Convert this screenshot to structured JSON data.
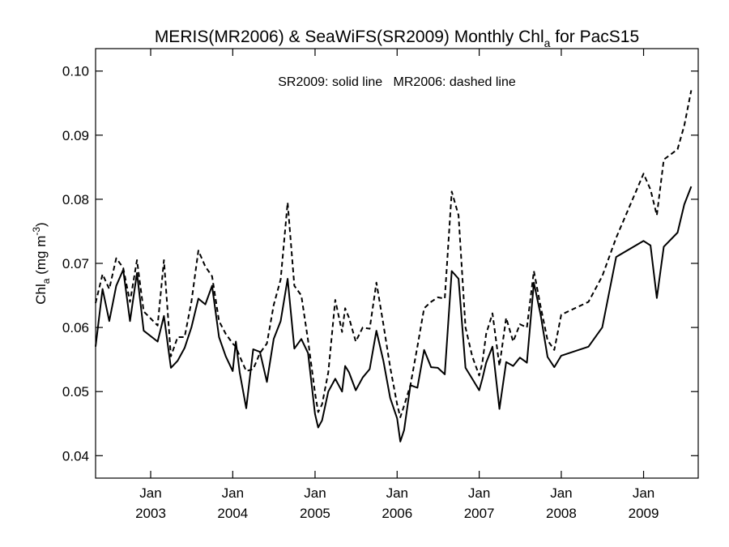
{
  "chart_data": {
    "type": "line",
    "title": {
      "main": "MERIS(MR2006) & SeaWiFS(SR2009) Monthly Chl",
      "sub": "a",
      "rest": " for PacS15"
    },
    "ylabel": {
      "main": "Chl",
      "sub": "a",
      "unit_pre": " (mg m",
      "sup": "-3",
      "unit_post": ")"
    },
    "annotation": "SR2009: solid line   MR2006: dashed line",
    "ylim": [
      0.0365,
      0.1035
    ],
    "yticks": [
      0.04,
      0.05,
      0.06,
      0.07,
      0.08,
      0.09,
      0.1
    ],
    "ytick_labels": [
      "0.04",
      "0.05",
      "0.06",
      "0.07",
      "0.08",
      "0.09",
      "0.10"
    ],
    "xlim": [
      "2002-05-01",
      "2009-09-01"
    ],
    "xticks": [
      {
        "date": "2003-01-01",
        "month": "Jan",
        "year": "2003"
      },
      {
        "date": "2004-01-01",
        "month": "Jan",
        "year": "2004"
      },
      {
        "date": "2005-01-01",
        "month": "Jan",
        "year": "2005"
      },
      {
        "date": "2006-01-01",
        "month": "Jan",
        "year": "2006"
      },
      {
        "date": "2007-01-01",
        "month": "Jan",
        "year": "2007"
      },
      {
        "date": "2008-01-01",
        "month": "Jan",
        "year": "2008"
      },
      {
        "date": "2009-01-01",
        "month": "Jan",
        "year": "2009"
      }
    ],
    "grid": false,
    "series": [
      {
        "name": "SR2009",
        "style": "solid",
        "color": "#000000",
        "points": [
          [
            "2002-05-01",
            0.057
          ],
          [
            "2002-06-01",
            0.066
          ],
          [
            "2002-07-01",
            0.061
          ],
          [
            "2002-08-01",
            0.0665
          ],
          [
            "2002-09-01",
            0.069
          ],
          [
            "2002-10-01",
            0.061
          ],
          [
            "2002-11-01",
            0.0685
          ],
          [
            "2002-12-01",
            0.0595
          ],
          [
            "2003-02-01",
            0.0578
          ],
          [
            "2003-03-01",
            0.0618
          ],
          [
            "2003-04-01",
            0.0537
          ],
          [
            "2003-05-01",
            0.0548
          ],
          [
            "2003-06-01",
            0.0568
          ],
          [
            "2003-07-01",
            0.06
          ],
          [
            "2003-08-01",
            0.0645
          ],
          [
            "2003-09-01",
            0.0636
          ],
          [
            "2003-10-01",
            0.0665
          ],
          [
            "2003-11-01",
            0.0585
          ],
          [
            "2003-12-01",
            0.0555
          ],
          [
            "2004-01-01",
            0.0532
          ],
          [
            "2004-01-15",
            0.0578
          ],
          [
            "2004-02-01",
            0.053
          ],
          [
            "2004-03-01",
            0.0474
          ],
          [
            "2004-04-01",
            0.0566
          ],
          [
            "2004-05-01",
            0.0562
          ],
          [
            "2004-06-01",
            0.0515
          ],
          [
            "2004-07-01",
            0.0582
          ],
          [
            "2004-08-01",
            0.061
          ],
          [
            "2004-09-01",
            0.0676
          ],
          [
            "2004-10-01",
            0.0567
          ],
          [
            "2004-11-01",
            0.0582
          ],
          [
            "2004-12-01",
            0.056
          ],
          [
            "2005-01-01",
            0.0465
          ],
          [
            "2005-01-15",
            0.0444
          ],
          [
            "2005-02-01",
            0.0455
          ],
          [
            "2005-03-01",
            0.05
          ],
          [
            "2005-04-01",
            0.052
          ],
          [
            "2005-05-01",
            0.05
          ],
          [
            "2005-05-15",
            0.054
          ],
          [
            "2005-06-01",
            0.053
          ],
          [
            "2005-07-01",
            0.0502
          ],
          [
            "2005-08-01",
            0.0522
          ],
          [
            "2005-09-01",
            0.0535
          ],
          [
            "2005-10-01",
            0.0595
          ],
          [
            "2005-11-01",
            0.0548
          ],
          [
            "2005-12-01",
            0.049
          ],
          [
            "2006-01-01",
            0.0458
          ],
          [
            "2006-01-15",
            0.0422
          ],
          [
            "2006-02-01",
            0.044
          ],
          [
            "2006-03-01",
            0.051
          ],
          [
            "2006-04-01",
            0.0506
          ],
          [
            "2006-05-01",
            0.0565
          ],
          [
            "2006-06-01",
            0.0538
          ],
          [
            "2006-07-01",
            0.0537
          ],
          [
            "2006-08-01",
            0.0527
          ],
          [
            "2006-09-01",
            0.0688
          ],
          [
            "2006-10-01",
            0.0676
          ],
          [
            "2006-11-01",
            0.0537
          ],
          [
            "2006-12-01",
            0.052
          ],
          [
            "2007-01-01",
            0.0502
          ],
          [
            "2007-01-15",
            0.052
          ],
          [
            "2007-02-01",
            0.0545
          ],
          [
            "2007-03-01",
            0.057
          ],
          [
            "2007-04-01",
            0.0473
          ],
          [
            "2007-05-01",
            0.0546
          ],
          [
            "2007-06-01",
            0.054
          ],
          [
            "2007-07-01",
            0.0553
          ],
          [
            "2007-08-01",
            0.0545
          ],
          [
            "2007-09-01",
            0.067
          ],
          [
            "2007-10-01",
            0.062
          ],
          [
            "2007-11-01",
            0.0554
          ],
          [
            "2007-12-01",
            0.0538
          ],
          [
            "2008-01-01",
            0.0556
          ],
          [
            "2008-05-01",
            0.057
          ],
          [
            "2008-07-01",
            0.06
          ],
          [
            "2008-09-01",
            0.071
          ],
          [
            "2009-01-01",
            0.0735
          ],
          [
            "2009-02-01",
            0.0728
          ],
          [
            "2009-03-01",
            0.0646
          ],
          [
            "2009-04-01",
            0.0726
          ],
          [
            "2009-06-01",
            0.0748
          ],
          [
            "2009-07-01",
            0.0792
          ],
          [
            "2009-08-01",
            0.082
          ]
        ]
      },
      {
        "name": "MR2006",
        "style": "dashed",
        "color": "#000000",
        "points": [
          [
            "2002-05-01",
            0.0638
          ],
          [
            "2002-06-01",
            0.0683
          ],
          [
            "2002-07-01",
            0.066
          ],
          [
            "2002-08-01",
            0.0708
          ],
          [
            "2002-09-01",
            0.0693
          ],
          [
            "2002-10-01",
            0.064
          ],
          [
            "2002-11-01",
            0.0705
          ],
          [
            "2002-12-01",
            0.0625
          ],
          [
            "2003-02-01",
            0.0603
          ],
          [
            "2003-03-01",
            0.0705
          ],
          [
            "2003-04-01",
            0.0555
          ],
          [
            "2003-05-01",
            0.0585
          ],
          [
            "2003-06-01",
            0.0585
          ],
          [
            "2003-07-01",
            0.064
          ],
          [
            "2003-08-01",
            0.072
          ],
          [
            "2003-09-01",
            0.0695
          ],
          [
            "2003-10-01",
            0.068
          ],
          [
            "2003-11-01",
            0.061
          ],
          [
            "2003-12-01",
            0.059
          ],
          [
            "2004-01-01",
            0.0575
          ],
          [
            "2004-01-15",
            0.057
          ],
          [
            "2004-02-01",
            0.0555
          ],
          [
            "2004-03-01",
            0.0532
          ],
          [
            "2004-04-01",
            0.0535
          ],
          [
            "2004-05-01",
            0.056
          ],
          [
            "2004-06-01",
            0.0575
          ],
          [
            "2004-07-01",
            0.0635
          ],
          [
            "2004-08-01",
            0.0675
          ],
          [
            "2004-09-01",
            0.0795
          ],
          [
            "2004-10-01",
            0.0665
          ],
          [
            "2004-11-01",
            0.065
          ],
          [
            "2004-12-01",
            0.058
          ],
          [
            "2005-01-01",
            0.0498
          ],
          [
            "2005-01-15",
            0.0468
          ],
          [
            "2005-02-01",
            0.048
          ],
          [
            "2005-03-01",
            0.053
          ],
          [
            "2005-04-01",
            0.0643
          ],
          [
            "2005-05-01",
            0.0593
          ],
          [
            "2005-05-15",
            0.063
          ],
          [
            "2005-06-01",
            0.0615
          ],
          [
            "2005-07-01",
            0.0578
          ],
          [
            "2005-08-01",
            0.06
          ],
          [
            "2005-09-01",
            0.0598
          ],
          [
            "2005-10-01",
            0.067
          ],
          [
            "2005-11-01",
            0.0605
          ],
          [
            "2005-12-01",
            0.0538
          ],
          [
            "2006-01-01",
            0.048
          ],
          [
            "2006-01-15",
            0.046
          ],
          [
            "2006-02-01",
            0.0478
          ],
          [
            "2006-03-01",
            0.051
          ],
          [
            "2006-04-01",
            0.057
          ],
          [
            "2006-05-01",
            0.063
          ],
          [
            "2006-06-01",
            0.064
          ],
          [
            "2006-07-01",
            0.0647
          ],
          [
            "2006-08-01",
            0.0645
          ],
          [
            "2006-09-01",
            0.0812
          ],
          [
            "2006-10-01",
            0.0775
          ],
          [
            "2006-11-01",
            0.06
          ],
          [
            "2006-12-01",
            0.0555
          ],
          [
            "2007-01-01",
            0.0525
          ],
          [
            "2007-01-15",
            0.0545
          ],
          [
            "2007-02-01",
            0.059
          ],
          [
            "2007-03-01",
            0.0622
          ],
          [
            "2007-04-01",
            0.054
          ],
          [
            "2007-05-01",
            0.0615
          ],
          [
            "2007-06-01",
            0.0578
          ],
          [
            "2007-07-01",
            0.0605
          ],
          [
            "2007-08-01",
            0.06
          ],
          [
            "2007-09-01",
            0.0688
          ],
          [
            "2007-10-01",
            0.0633
          ],
          [
            "2007-11-01",
            0.058
          ],
          [
            "2007-12-01",
            0.0565
          ],
          [
            "2008-01-01",
            0.062
          ],
          [
            "2008-05-01",
            0.064
          ],
          [
            "2008-07-01",
            0.068
          ],
          [
            "2008-09-01",
            0.074
          ],
          [
            "2009-01-01",
            0.084
          ],
          [
            "2009-02-01",
            0.0815
          ],
          [
            "2009-03-01",
            0.0775
          ],
          [
            "2009-04-01",
            0.0862
          ],
          [
            "2009-06-01",
            0.0878
          ],
          [
            "2009-07-01",
            0.0915
          ],
          [
            "2009-08-01",
            0.097
          ]
        ]
      }
    ]
  }
}
